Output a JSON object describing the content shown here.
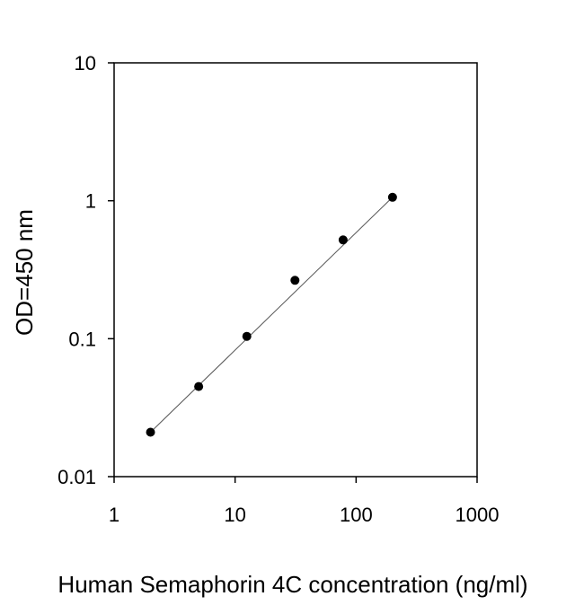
{
  "chart_data": {
    "type": "scatter",
    "title": "",
    "xlabel": "Human Semaphorin 4C concentration (ng/ml)",
    "ylabel": "OD=450 nm",
    "x_scale": "log",
    "y_scale": "log",
    "xlim": [
      1,
      1000
    ],
    "ylim": [
      0.01,
      10
    ],
    "x_ticks": [
      1,
      10,
      100,
      1000
    ],
    "x_tick_labels": [
      "1",
      "10",
      "100",
      "1000"
    ],
    "y_ticks": [
      0.01,
      0.1,
      1,
      10
    ],
    "y_tick_labels": [
      "0.01",
      "0.1",
      "1",
      "10"
    ],
    "grid": false,
    "legend": "none",
    "series": [
      {
        "x": [
          2,
          5,
          12.5,
          31.25,
          78.1,
          200
        ],
        "y": [
          0.021,
          0.045,
          0.104,
          0.265,
          0.52,
          1.06
        ],
        "marker": "filled-circle",
        "fit_line": true
      }
    ],
    "colors": {
      "marker": "#000000",
      "line": "#555555",
      "axis": "#000000"
    }
  }
}
